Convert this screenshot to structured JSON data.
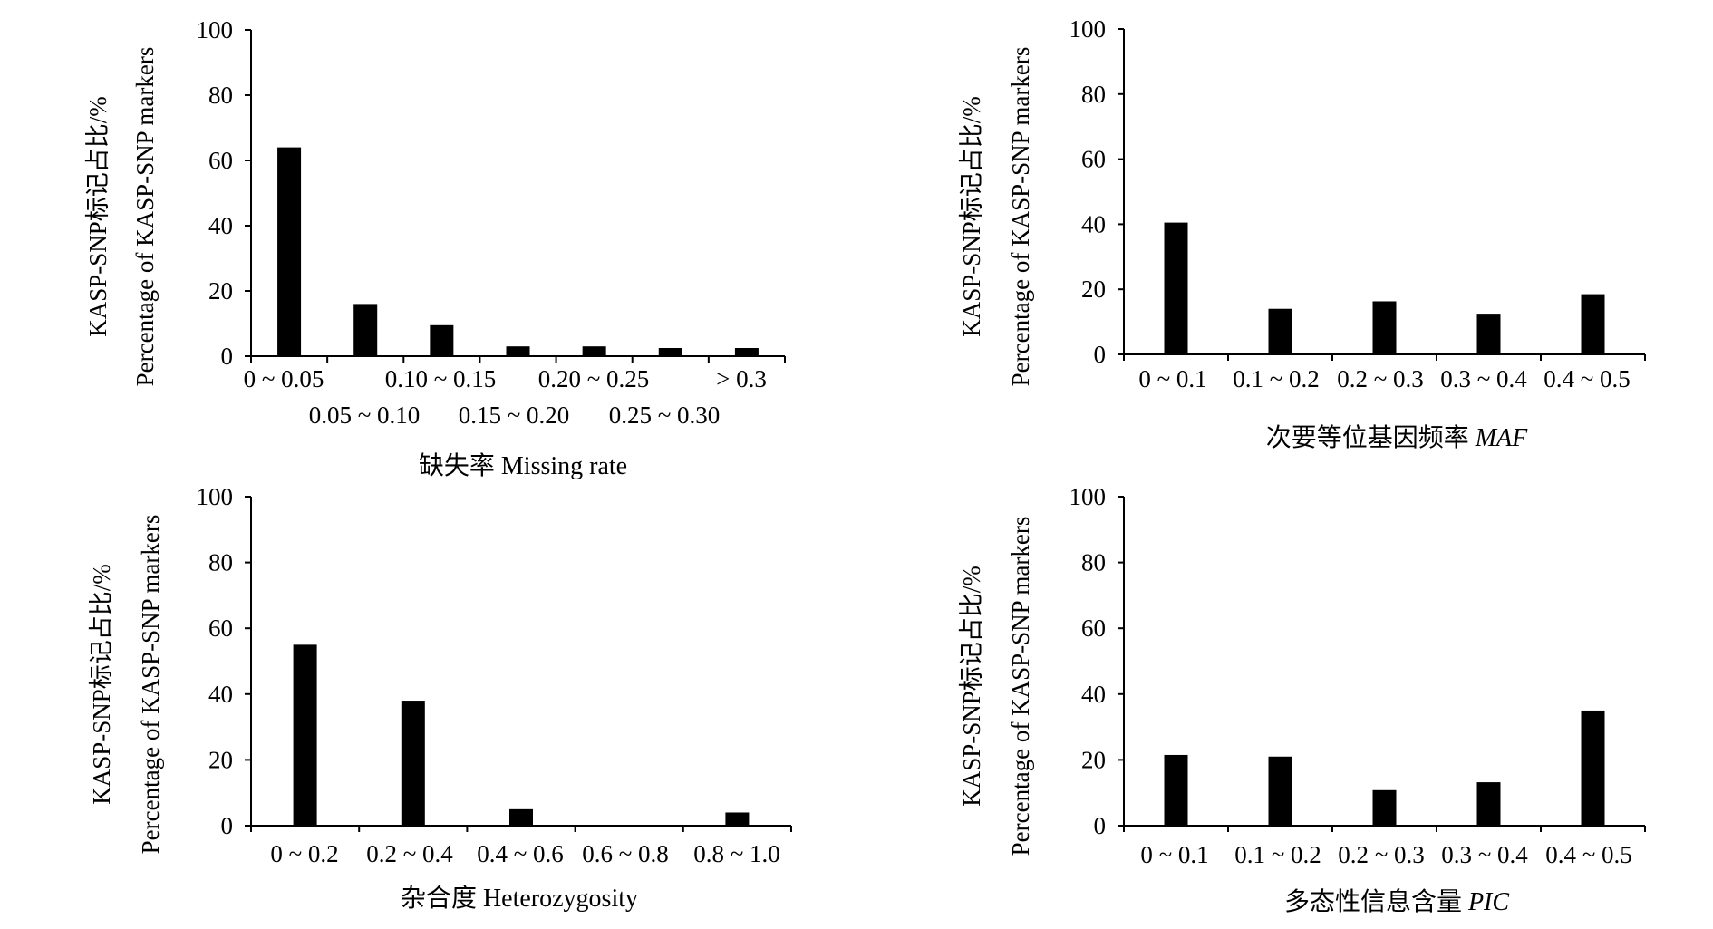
{
  "chart_data": [
    {
      "type": "bar",
      "xlabel": "缺失率 Missing rate",
      "ylabel_lines": [
        "KASP-SNP标记占比/%",
        "Percentage of KASP-SNP markers"
      ],
      "categories": [
        "0 ~ 0.05",
        "0.05 ~ 0.10",
        "0.10 ~ 0.15",
        "0.15 ~ 0.20",
        "0.20 ~ 0.25",
        "0.25 ~ 0.30",
        "> 0.3"
      ],
      "values": [
        64,
        16,
        9.5,
        3,
        3,
        2.5,
        2.5
      ],
      "ylim": [
        0,
        100
      ],
      "yticks": [
        "0",
        "20",
        "40",
        "60",
        "80",
        "100"
      ],
      "colors": {
        "bar": "#000000",
        "axis": "#000000"
      }
    },
    {
      "type": "bar",
      "xlabel": "次要等位基因频率",
      "xlabel_italic": "MAF",
      "ylabel_lines": [
        "KASP-SNP标记占比/%",
        "Percentage of KASP-SNP markers"
      ],
      "categories": [
        "0 ~ 0.1",
        "0.1 ~ 0.2",
        "0.2 ~ 0.3",
        "0.3 ~ 0.4",
        "0.4 ~ 0.5"
      ],
      "values": [
        40.5,
        14,
        16.3,
        12.5,
        18.5
      ],
      "ylim": [
        0,
        100
      ],
      "yticks": [
        "0",
        "20",
        "40",
        "60",
        "80",
        "100"
      ],
      "colors": {
        "bar": "#000000",
        "axis": "#000000"
      }
    },
    {
      "type": "bar",
      "xlabel": "杂合度 Heterozygosity",
      "ylabel_lines": [
        "KASP-SNP标记占比/%",
        "Percentage of KASP-SNP markers"
      ],
      "categories": [
        "0 ~ 0.2",
        "0.2 ~ 0.4",
        "0.4 ~ 0.6",
        "0.6 ~ 0.8",
        "0.8 ~ 1.0"
      ],
      "values": [
        55,
        38,
        5,
        0,
        4
      ],
      "ylim": [
        0,
        100
      ],
      "yticks": [
        "0",
        "20",
        "40",
        "60",
        "80",
        "100"
      ],
      "colors": {
        "bar": "#000000",
        "axis": "#000000"
      }
    },
    {
      "type": "bar",
      "xlabel": "多态性信息含量",
      "xlabel_italic": "PIC",
      "ylabel_lines": [
        "KASP-SNP标记占比/%",
        "Percentage of KASP-SNP markers"
      ],
      "categories": [
        "0 ~ 0.1",
        "0.1 ~ 0.2",
        "0.2 ~ 0.3",
        "0.3 ~ 0.4",
        "0.4 ~ 0.5"
      ],
      "values": [
        21.5,
        21,
        10.8,
        13.2,
        35
      ],
      "ylim": [
        0,
        100
      ],
      "yticks": [
        "0",
        "20",
        "40",
        "60",
        "80",
        "100"
      ],
      "colors": {
        "bar": "#000000",
        "axis": "#000000"
      }
    }
  ]
}
